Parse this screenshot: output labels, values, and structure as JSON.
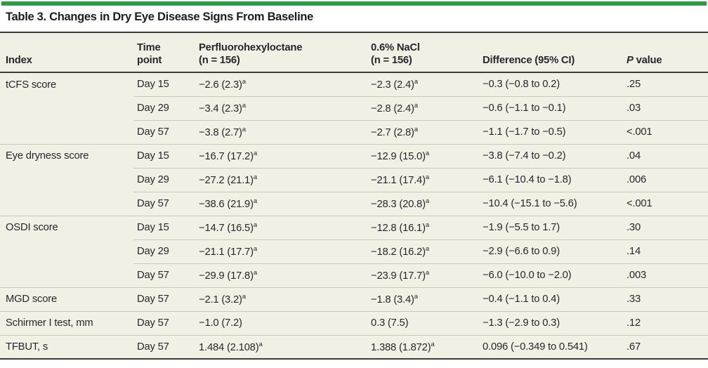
{
  "title": "Table 3. Changes in Dry Eye Disease Signs From Baseline",
  "colors": {
    "accent_green": "#2e9b41",
    "table_background": "#f2f0e5",
    "rule_dark": "#3b3b3b",
    "rule_light": "#cbc9bd",
    "text": "#26262e"
  },
  "table": {
    "columns": {
      "index": "Index",
      "time": "Time\npoint",
      "pfho": "Perfluorohexyloctane\n(n = 156)",
      "nacl": "0.6% NaCl\n(n = 156)",
      "diff": "Difference (95% CI)",
      "p_italic": "P",
      "p_rest": " value"
    },
    "footnote_marker": "a",
    "rows": [
      {
        "index": "tCFS score",
        "time": "Day 15",
        "pfho": "−2.6 (2.3)^a",
        "nacl": "−2.3 (2.4)^a",
        "diff": "−0.3 (−0.8 to 0.2)",
        "p": ".25",
        "group_start": true
      },
      {
        "index": "",
        "time": "Day 29",
        "pfho": "−3.4 (2.3)^a",
        "nacl": "−2.8 (2.4)^a",
        "diff": "−0.6 (−1.1 to −0.1)",
        "p": ".03",
        "group_start": false
      },
      {
        "index": "",
        "time": "Day 57",
        "pfho": "−3.8 (2.7)^a",
        "nacl": "−2.7 (2.8)^a",
        "diff": "−1.1 (−1.7 to −0.5)",
        "p": "<.001",
        "group_start": false
      },
      {
        "index": "Eye dryness score",
        "time": "Day 15",
        "pfho": "−16.7 (17.2)^a",
        "nacl": "−12.9 (15.0)^a",
        "diff": "−3.8 (−7.4 to −0.2)",
        "p": ".04",
        "group_start": true
      },
      {
        "index": "",
        "time": "Day 29",
        "pfho": "−27.2 (21.1)^a",
        "nacl": "−21.1 (17.4)^a",
        "diff": "−6.1 (−10.4 to −1.8)",
        "p": ".006",
        "group_start": false
      },
      {
        "index": "",
        "time": "Day 57",
        "pfho": "−38.6 (21.9)^a",
        "nacl": "−28.3 (20.8)^a",
        "diff": "−10.4 (−15.1 to −5.6)",
        "p": "<.001",
        "group_start": false
      },
      {
        "index": "OSDI score",
        "time": "Day 15",
        "pfho": "−14.7 (16.5)^a",
        "nacl": "−12.8 (16.1)^a",
        "diff": "−1.9 (−5.5 to 1.7)",
        "p": ".30",
        "group_start": true
      },
      {
        "index": "",
        "time": "Day 29",
        "pfho": "−21.1 (17.7)^a",
        "nacl": "−18.2 (16.2)^a",
        "diff": "−2.9 (−6.6 to 0.9)",
        "p": ".14",
        "group_start": false
      },
      {
        "index": "",
        "time": "Day 57",
        "pfho": "−29.9 (17.8)^a",
        "nacl": "−23.9 (17.7)^a",
        "diff": "−6.0 (−10.0 to −2.0)",
        "p": ".003",
        "group_start": false
      },
      {
        "index": "MGD score",
        "time": "Day 57",
        "pfho": "−2.1 (3.2)^a",
        "nacl": "−1.8 (3.4)^a",
        "diff": "−0.4 (−1.1 to 0.4)",
        "p": ".33",
        "group_start": true
      },
      {
        "index": "Schirmer I test, mm",
        "time": "Day 57",
        "pfho": "−1.0 (7.2)",
        "nacl": "0.3 (7.5)",
        "diff": "−1.3 (−2.9 to 0.3)",
        "p": ".12",
        "group_start": true
      },
      {
        "index": "TFBUT, s",
        "time": "Day 57",
        "pfho": "1.484 (2.108)^a",
        "nacl": "1.388 (1.872)^a",
        "diff": "0.096 (−0.349 to 0.541)",
        "p": ".67",
        "group_start": true
      }
    ]
  }
}
